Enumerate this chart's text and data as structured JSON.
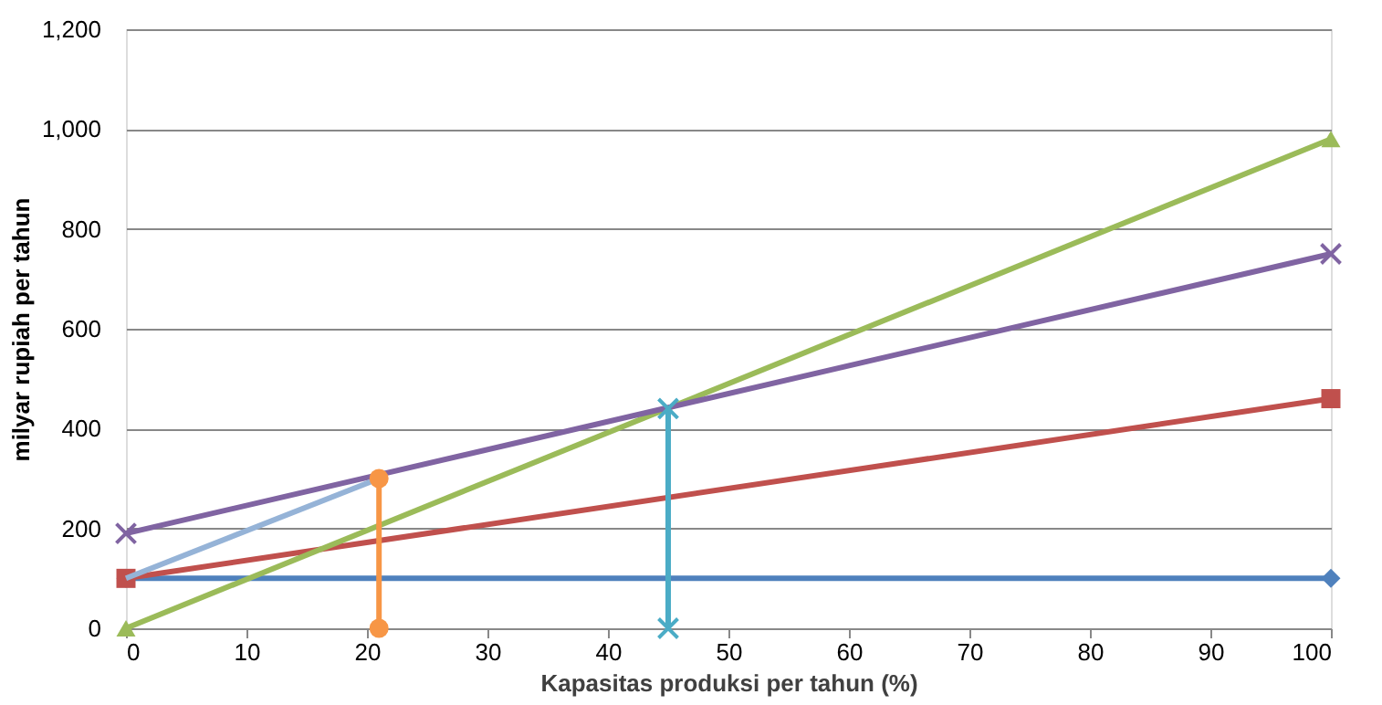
{
  "chart_data": {
    "type": "line",
    "xlabel": "Kapasitas produksi per tahun (%)",
    "ylabel": "milyar rupiah per tahun",
    "xlim": [
      0,
      100
    ],
    "xticks": [
      0,
      10,
      20,
      30,
      40,
      50,
      60,
      70,
      80,
      90,
      100
    ],
    "ylim": [
      0,
      1200
    ],
    "yticks": [
      0,
      200,
      400,
      600,
      800,
      {
        "value": 1000,
        "label": "1,000"
      },
      {
        "value": 1200,
        "label": "1,200"
      }
    ],
    "grid": "y",
    "series": [
      {
        "color": "#4f81bd",
        "marker": "diamond",
        "x": [
          0,
          100
        ],
        "values": [
          100,
          100
        ]
      },
      {
        "color": "#c0504d",
        "marker": "square",
        "x": [
          0,
          100
        ],
        "values": [
          100,
          460
        ]
      },
      {
        "color": "#9bbb59",
        "marker": "triangle",
        "x": [
          0,
          100
        ],
        "values": [
          0,
          980
        ]
      },
      {
        "color": "#8064a2",
        "marker": "cross",
        "x": [
          0,
          100
        ],
        "values": [
          190,
          750
        ]
      },
      {
        "color": "#95b3d7",
        "marker": "none",
        "x": [
          0,
          21
        ],
        "values": [
          100,
          300
        ]
      },
      {
        "color": "#f79646",
        "marker": "circle",
        "x": [
          21,
          21
        ],
        "values": [
          0,
          300
        ]
      },
      {
        "color": "#4bacc6",
        "marker": "cross",
        "x": [
          45,
          45
        ],
        "values": [
          0,
          440
        ]
      }
    ]
  }
}
